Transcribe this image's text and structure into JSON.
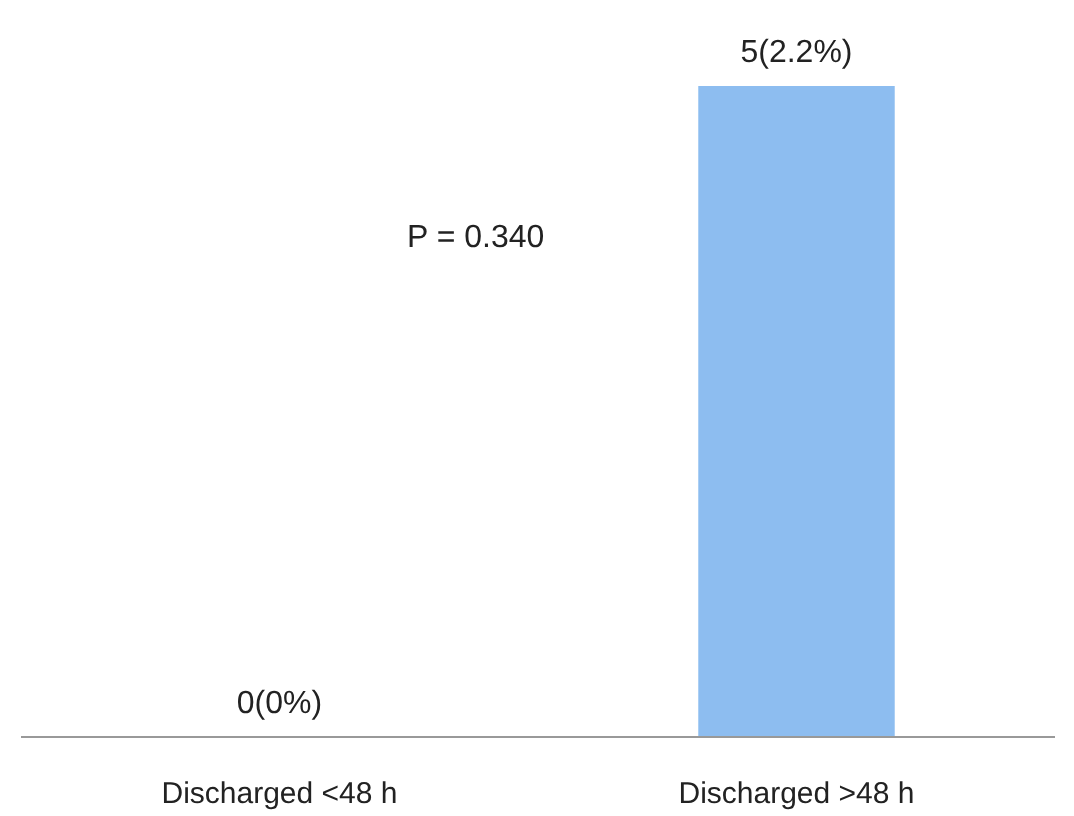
{
  "chart_data": {
    "type": "bar",
    "categories": [
      "Discharged <48 h",
      "Discharged >48 h"
    ],
    "values": [
      0,
      5
    ],
    "value_labels": [
      "0(0%)",
      "5(2.2%)"
    ],
    "color": "#8dbdf0",
    "annotations": [
      "P = 0.340"
    ],
    "grid": false
  }
}
